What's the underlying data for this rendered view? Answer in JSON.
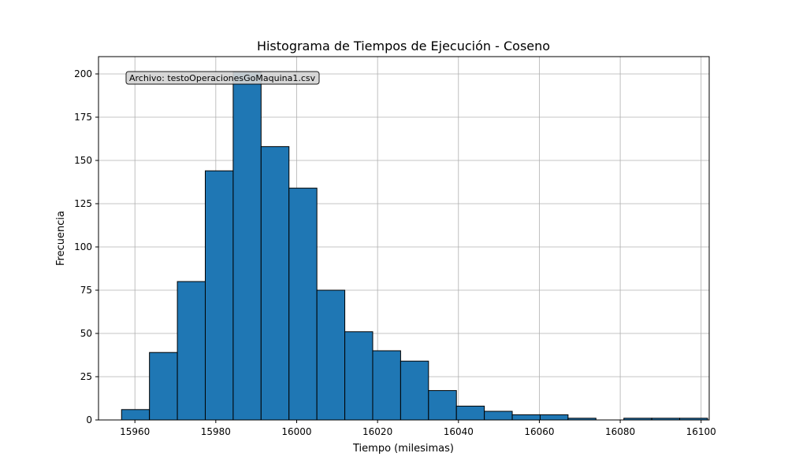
{
  "chart_data": {
    "type": "bar",
    "title": "Histograma de Tiempos de Ejecución - Coseno",
    "xlabel": "Tiempo (milesimas)",
    "ylabel": "Frecuencia",
    "xlim": [
      15951,
      16102
    ],
    "ylim": [
      0,
      210
    ],
    "x_ticks": [
      15960,
      15980,
      16000,
      16020,
      16040,
      16060,
      16080,
      16100
    ],
    "y_ticks": [
      0,
      25,
      50,
      75,
      100,
      125,
      150,
      175,
      200
    ],
    "grid": true,
    "bin_edges": [
      15956.7,
      15963.6,
      15970.5,
      15977.4,
      15984.3,
      15991.2,
      15998.1,
      16005.0,
      16011.9,
      16018.8,
      16025.7,
      16032.6,
      16039.5,
      16046.4,
      16053.3,
      16060.2,
      16067.1,
      16074.0,
      16080.9,
      16087.8,
      16094.7,
      16101.6
    ],
    "values": [
      6,
      39,
      80,
      144,
      201,
      158,
      134,
      75,
      51,
      40,
      34,
      17,
      8,
      5,
      3,
      3,
      1,
      0,
      1,
      1,
      1
    ],
    "bar_color": "#1f77b4",
    "edge_color": "#000000",
    "annotation": {
      "text": "Archivo: testoOperacionesGoMaquina1.csv",
      "placement": "top-left"
    }
  }
}
